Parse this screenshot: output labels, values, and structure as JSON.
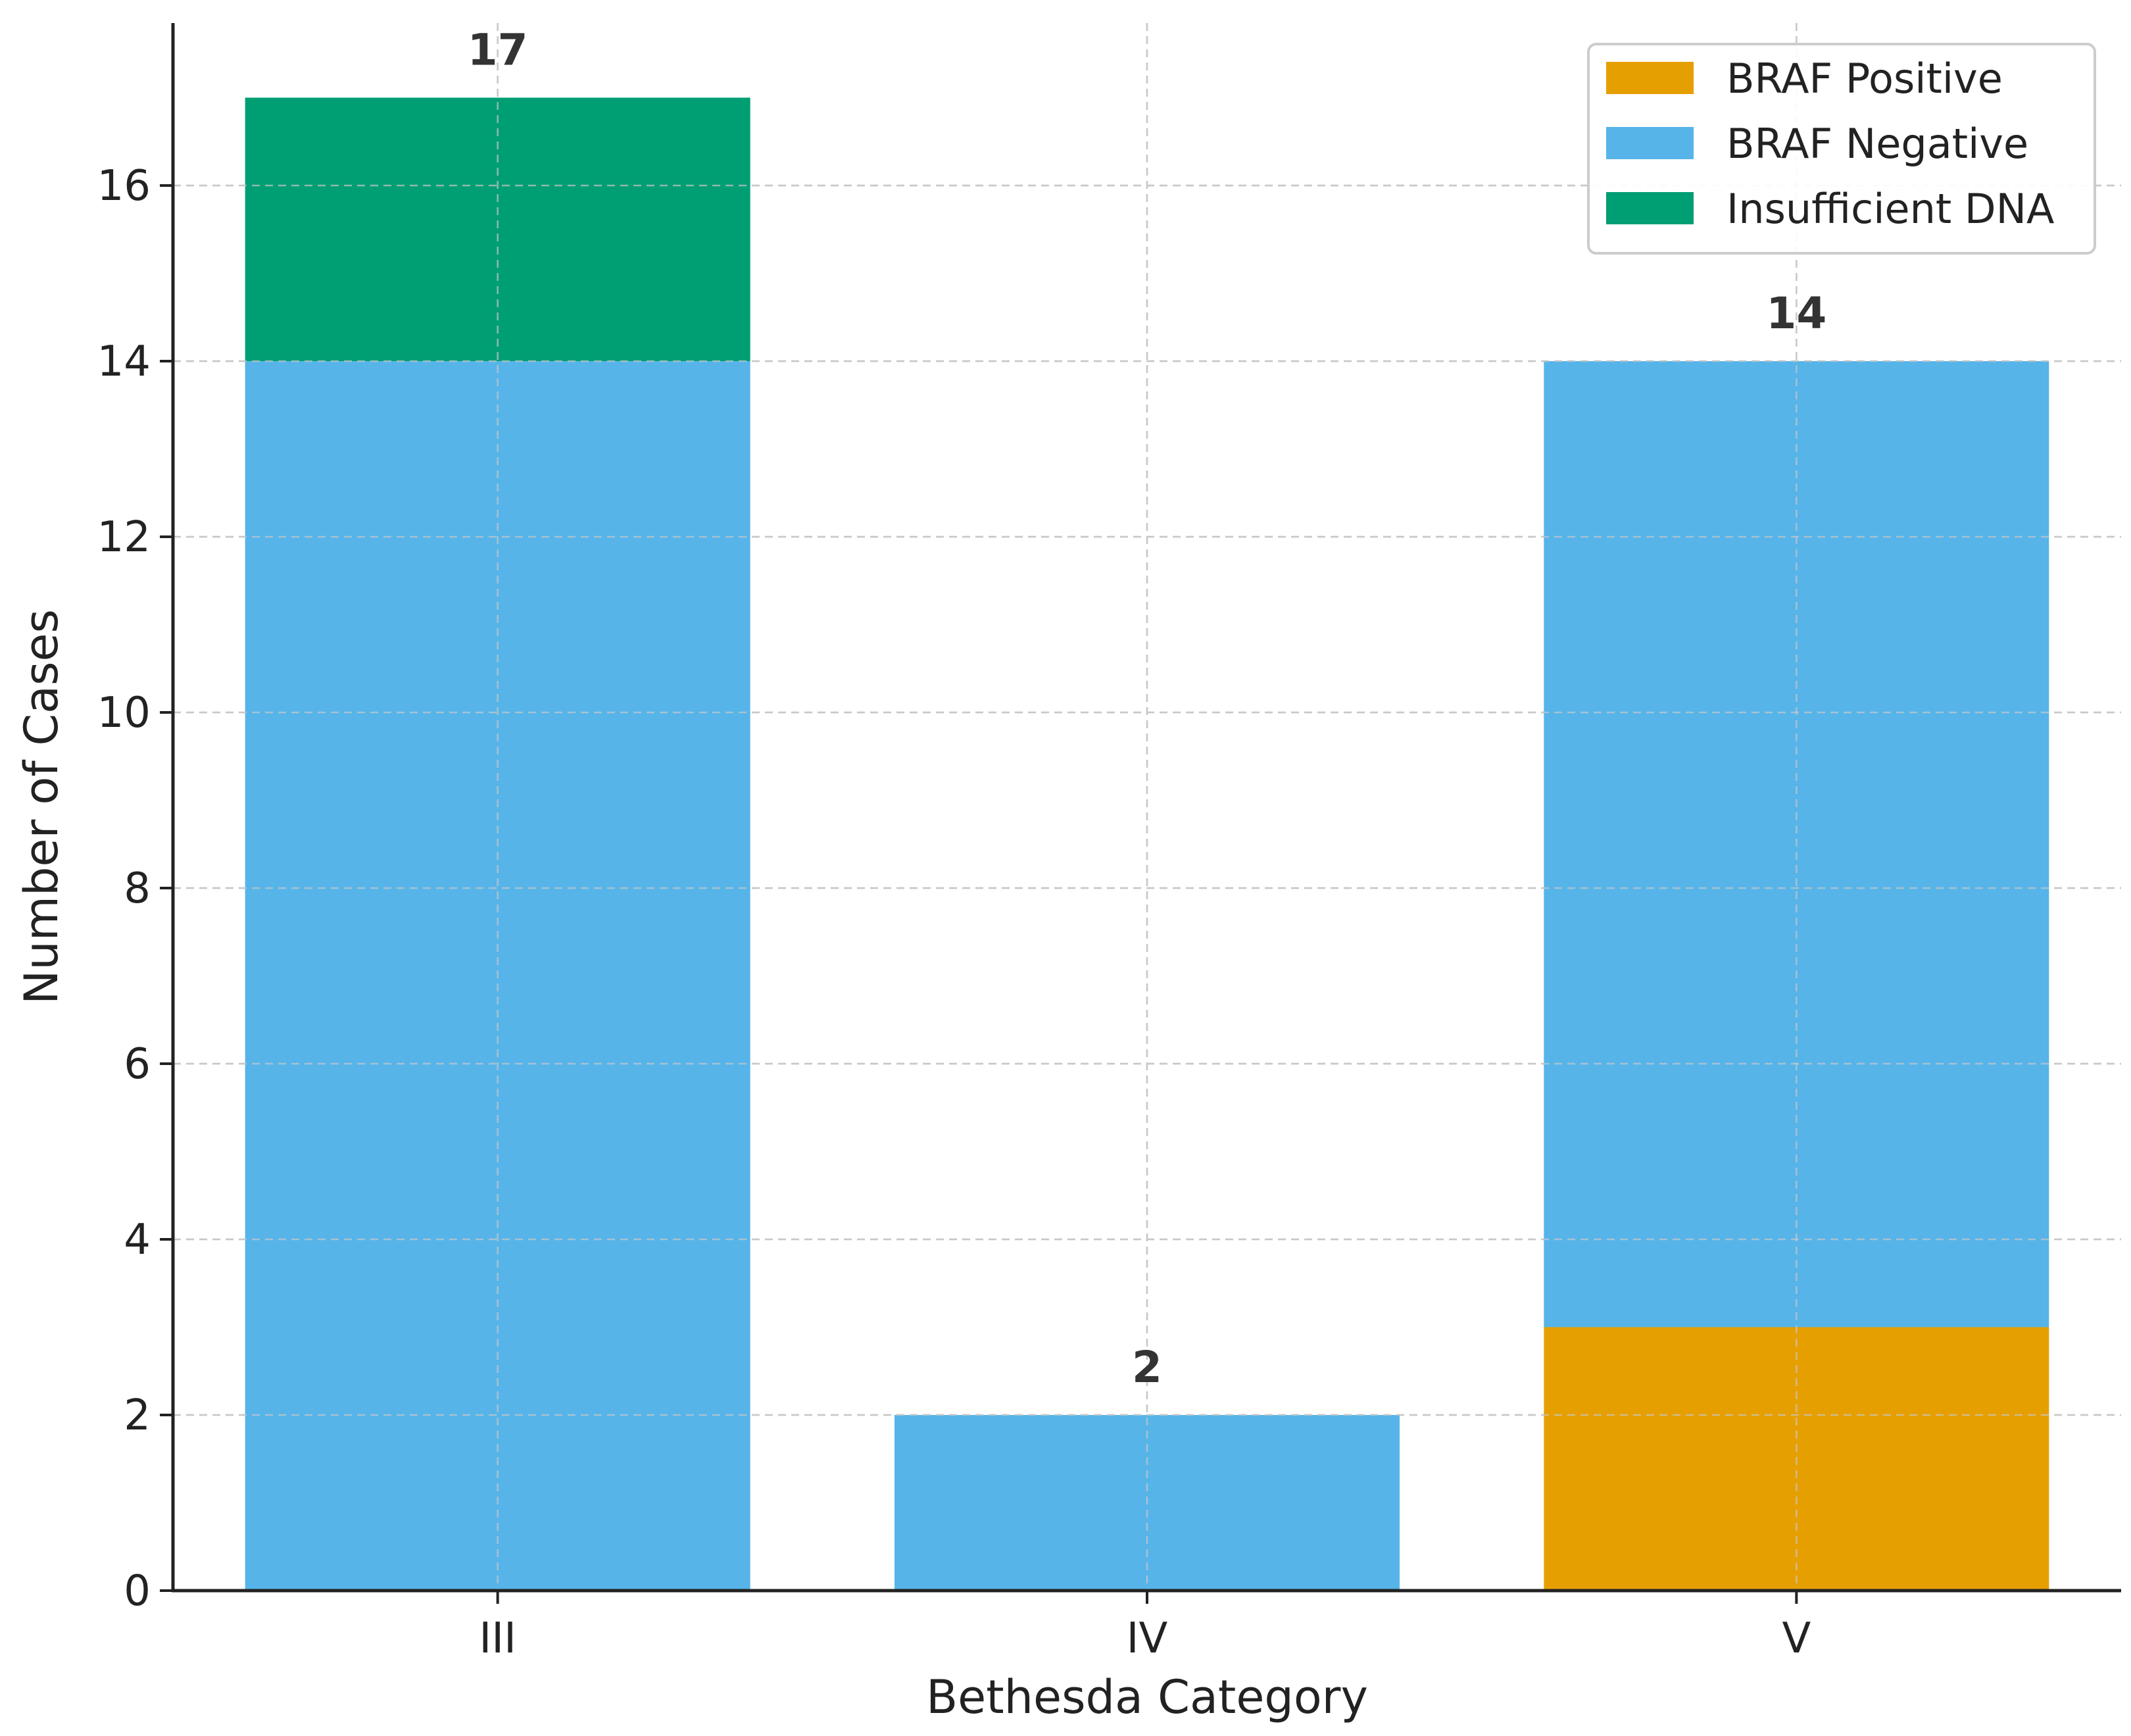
{
  "colors": {
    "braf_positive": "#E69F00",
    "braf_negative": "#56B4E9",
    "insufficient_dna": "#009E73",
    "axis": "#222222",
    "grid": "#c8c8c8",
    "total_label": "#333333"
  },
  "chart_data": {
    "type": "bar",
    "stacked": true,
    "title": "",
    "xlabel": "Bethesda Category",
    "ylabel": "Number of Cases",
    "ylim": [
      0,
      17.85
    ],
    "yticks": [
      0,
      2,
      4,
      6,
      8,
      10,
      12,
      14,
      16
    ],
    "ytick_labels": [
      "0",
      "2",
      "4",
      "6",
      "8",
      "10",
      "12",
      "14",
      "16"
    ],
    "grid": true,
    "legend_position": "top-right",
    "categories": [
      "III",
      "IV",
      "V"
    ],
    "series": [
      {
        "name": "BRAF Positive",
        "color_key": "braf_positive",
        "values": [
          0,
          0,
          3
        ]
      },
      {
        "name": "BRAF Negative",
        "color_key": "braf_negative",
        "values": [
          14,
          2,
          11
        ]
      },
      {
        "name": "Insufficient DNA",
        "color_key": "insufficient_dna",
        "values": [
          3,
          0,
          0
        ]
      }
    ],
    "totals": [
      17,
      2,
      14
    ],
    "total_labels": [
      "17",
      "2",
      "14"
    ]
  }
}
